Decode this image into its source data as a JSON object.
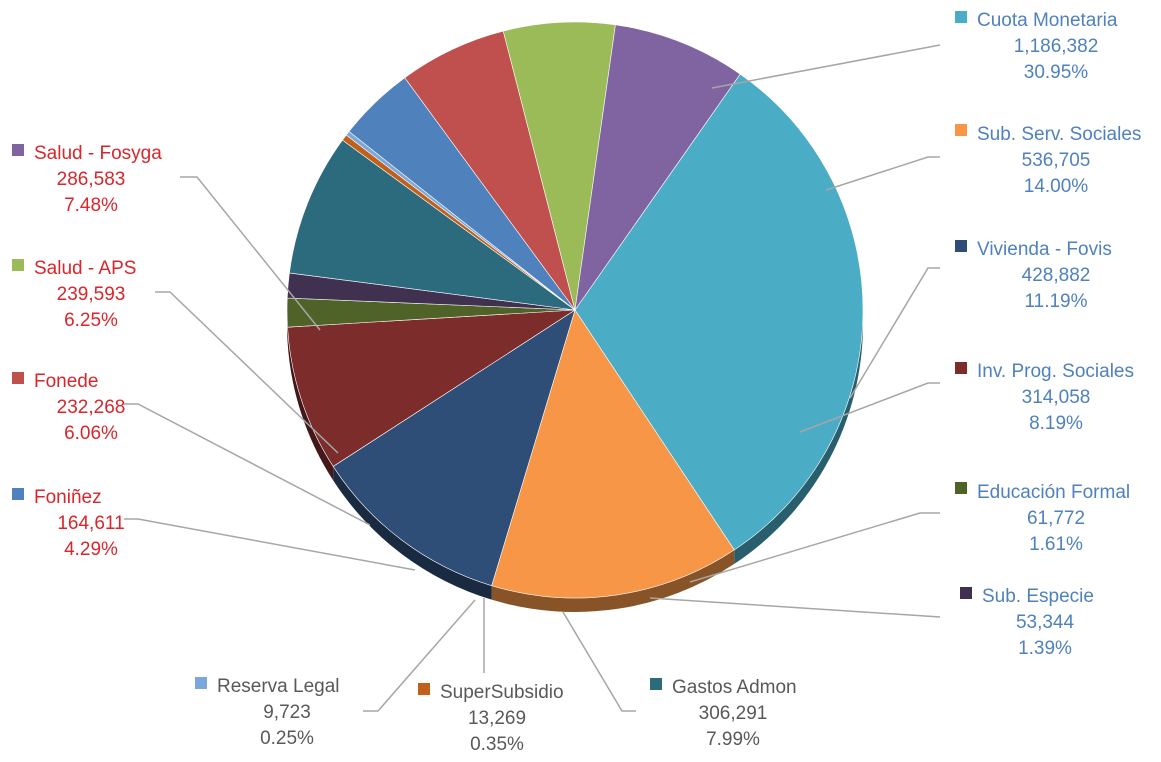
{
  "chart_data": {
    "type": "pie",
    "title": "",
    "slices": [
      {
        "name": "Cuota Monetaria",
        "value": "1,186,382",
        "pct": "30.95%",
        "percent": 30.95,
        "color": "#4BACC6",
        "label_color": "#4F81BD"
      },
      {
        "name": "Sub. Serv. Sociales",
        "value": "536,705",
        "pct": "14.00%",
        "percent": 14.0,
        "color": "#F79646",
        "label_color": "#4F81BD"
      },
      {
        "name": "Vivienda - Fovis",
        "value": "428,882",
        "pct": "11.19%",
        "percent": 11.19,
        "color": "#2E4D77",
        "label_color": "#4F81BD"
      },
      {
        "name": "Inv. Prog. Sociales",
        "value": "314,058",
        "pct": "8.19%",
        "percent": 8.19,
        "color": "#7B2C2B",
        "label_color": "#4F81BD"
      },
      {
        "name": "Educación Formal",
        "value": "61,772",
        "pct": "1.61%",
        "percent": 1.61,
        "color": "#4F6228",
        "label_color": "#4F81BD"
      },
      {
        "name": "Sub. Especie",
        "value": "53,344",
        "pct": "1.39%",
        "percent": 1.39,
        "color": "#403151",
        "label_color": "#4F81BD"
      },
      {
        "name": "Gastos Admon",
        "value": "306,291",
        "pct": "7.99%",
        "percent": 7.99,
        "color": "#2C6B7D",
        "label_color": "#595959"
      },
      {
        "name": "SuperSubsidio",
        "value": "13,269",
        "pct": "0.35%",
        "percent": 0.35,
        "color": "#C0601A",
        "label_color": "#595959"
      },
      {
        "name": "Reserva Legal",
        "value": "9,723",
        "pct": "0.25%",
        "percent": 0.25,
        "color": "#7BA7DB",
        "label_color": "#595959"
      },
      {
        "name": "Foniñez",
        "value": "164,611",
        "pct": "4.29%",
        "percent": 4.29,
        "color": "#4F81BD",
        "label_color": "#D9262B"
      },
      {
        "name": "Fonede",
        "value": "232,268",
        "pct": "6.06%",
        "percent": 6.06,
        "color": "#C0504D",
        "label_color": "#D9262B"
      },
      {
        "name": "Salud - APS",
        "value": "239,593",
        "pct": "6.25%",
        "percent": 6.25,
        "color": "#9BBB59",
        "label_color": "#D9262B"
      },
      {
        "name": "Salud - Fosyga",
        "value": "286,583",
        "pct": "7.48%",
        "percent": 7.48,
        "color": "#8064A2",
        "label_color": "#D9262B"
      }
    ]
  }
}
